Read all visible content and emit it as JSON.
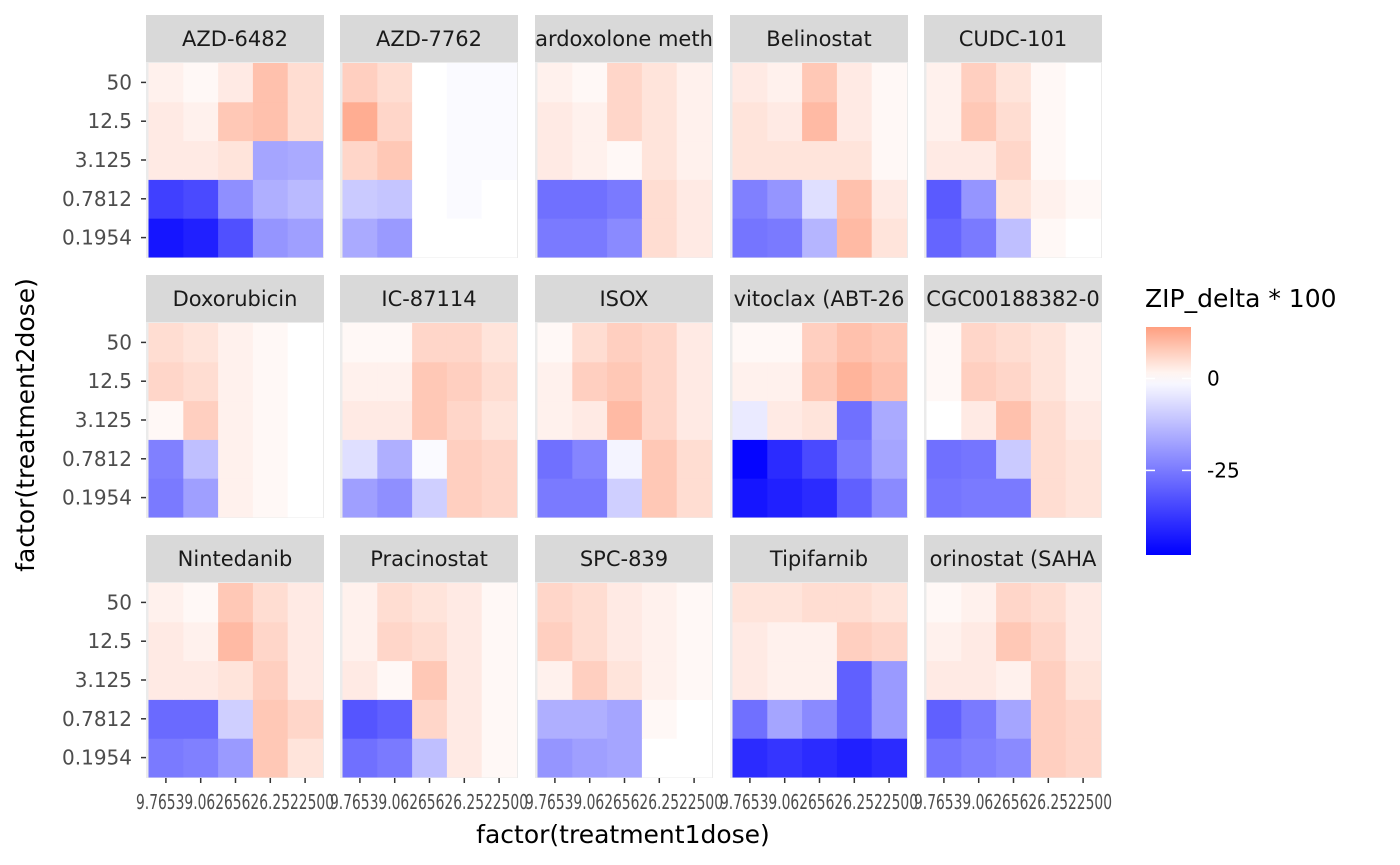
{
  "chart_data": {
    "type": "heatmap",
    "xlabel": "factor(treatment1dose)",
    "ylabel": "factor(treatment2dose)",
    "x_categories": [
      "9.765625",
      "39.0625",
      "156.25",
      "625",
      "2500"
    ],
    "x_tick_display": "9.76539.06265626.2522500",
    "y_categories": [
      "0.1954",
      "0.7812",
      "3.125",
      "12.5",
      "50"
    ],
    "legend": {
      "title": "ZIP_delta * 100",
      "breaks": [
        {
          "value": 0,
          "label": "0"
        },
        {
          "value": -25,
          "label": "-25"
        }
      ],
      "limits": [
        -48,
        14
      ],
      "low_color": "#0000ff",
      "mid_color": "#ffffff",
      "high_color": "#ff9f80"
    },
    "facet_layout": {
      "rows": 3,
      "cols": 5
    },
    "facets": [
      {
        "name": "AZD-6482",
        "z": [
          [
            -44,
            -42,
            -33,
            -20,
            -18
          ],
          [
            -36,
            -34,
            -21,
            -15,
            -13
          ],
          [
            3,
            3,
            4,
            -17,
            -16
          ],
          [
            3,
            2,
            8,
            9,
            5
          ],
          [
            2,
            1,
            3,
            9,
            5
          ]
        ]
      },
      {
        "name": "AZD-7762",
        "z": [
          [
            -16,
            -19,
            0,
            0,
            0
          ],
          [
            -10,
            -11,
            0,
            -1,
            0
          ],
          [
            6,
            8,
            0,
            -1,
            -1
          ],
          [
            12,
            6,
            0,
            -1,
            -1
          ],
          [
            7,
            5,
            0,
            -1,
            -1
          ]
        ]
      },
      {
        "name": "ardoxolone meth",
        "z": [
          [
            -25,
            -25,
            -22,
            5,
            3
          ],
          [
            -27,
            -27,
            -25,
            5,
            3
          ],
          [
            3,
            2,
            1,
            4,
            2
          ],
          [
            3,
            2,
            6,
            4,
            2
          ],
          [
            2,
            1,
            6,
            4,
            2
          ]
        ]
      },
      {
        "name": "Belinostat",
        "z": [
          [
            -26,
            -25,
            -14,
            10,
            4
          ],
          [
            -24,
            -20,
            -6,
            9,
            3
          ],
          [
            4,
            4,
            4,
            4,
            1
          ],
          [
            4,
            3,
            10,
            3,
            1
          ],
          [
            3,
            2,
            8,
            3,
            1
          ]
        ]
      },
      {
        "name": "CUDC-101",
        "z": [
          [
            -29,
            -25,
            -12,
            1,
            0
          ],
          [
            -31,
            -20,
            4,
            2,
            1
          ],
          [
            3,
            3,
            6,
            1,
            0
          ],
          [
            2,
            8,
            5,
            1,
            0
          ],
          [
            2,
            7,
            4,
            1,
            0
          ]
        ]
      },
      {
        "name": "Doxorubicin",
        "z": [
          [
            -25,
            -18,
            2,
            1,
            0
          ],
          [
            -24,
            -12,
            2,
            1,
            0
          ],
          [
            1,
            7,
            2,
            1,
            0
          ],
          [
            6,
            5,
            2,
            1,
            0
          ],
          [
            5,
            4,
            2,
            1,
            0
          ]
        ]
      },
      {
        "name": "IC-87114",
        "z": [
          [
            -18,
            -21,
            -9,
            7,
            6
          ],
          [
            -6,
            -15,
            -1,
            7,
            6
          ],
          [
            3,
            3,
            8,
            6,
            4
          ],
          [
            2,
            2,
            8,
            7,
            5
          ],
          [
            1,
            1,
            6,
            6,
            4
          ]
        ]
      },
      {
        "name": "ISOX",
        "z": [
          [
            -25,
            -25,
            -9,
            8,
            5
          ],
          [
            -27,
            -23,
            -2,
            8,
            5
          ],
          [
            2,
            3,
            10,
            6,
            3
          ],
          [
            2,
            7,
            8,
            6,
            3
          ],
          [
            1,
            5,
            7,
            6,
            3
          ]
        ]
      },
      {
        "name": "vitoclax (ABT-26",
        "z": [
          [
            -44,
            -42,
            -40,
            -30,
            -22
          ],
          [
            -47,
            -40,
            -34,
            -25,
            -17
          ],
          [
            -4,
            3,
            4,
            -27,
            -16
          ],
          [
            2,
            2,
            8,
            11,
            9
          ],
          [
            1,
            1,
            7,
            9,
            8
          ]
        ]
      },
      {
        "name": "CGC00188382-0",
        "z": [
          [
            -26,
            -25,
            -25,
            5,
            4
          ],
          [
            -27,
            -26,
            -10,
            5,
            4
          ],
          [
            0,
            3,
            9,
            5,
            3
          ],
          [
            1,
            7,
            6,
            4,
            2
          ],
          [
            1,
            6,
            5,
            4,
            2
          ]
        ]
      },
      {
        "name": "Nintedanib",
        "z": [
          [
            -25,
            -24,
            -19,
            8,
            4
          ],
          [
            -28,
            -28,
            -9,
            8,
            6
          ],
          [
            3,
            3,
            4,
            7,
            3
          ],
          [
            3,
            2,
            10,
            6,
            3
          ],
          [
            2,
            1,
            8,
            5,
            3
          ]
        ]
      },
      {
        "name": "Pracinostat",
        "z": [
          [
            -27,
            -25,
            -12,
            3,
            1
          ],
          [
            -32,
            -30,
            6,
            3,
            1
          ],
          [
            3,
            1,
            8,
            3,
            1
          ],
          [
            2,
            6,
            5,
            3,
            1
          ],
          [
            2,
            5,
            4,
            3,
            1
          ]
        ]
      },
      {
        "name": "SPC-839",
        "z": [
          [
            -20,
            -18,
            -17,
            0,
            0
          ],
          [
            -15,
            -15,
            -17,
            1,
            0
          ],
          [
            2,
            7,
            4,
            2,
            1
          ],
          [
            7,
            5,
            3,
            2,
            1
          ],
          [
            6,
            5,
            3,
            2,
            1
          ]
        ]
      },
      {
        "name": "Tipifarnib",
        "z": [
          [
            -40,
            -38,
            -40,
            -42,
            -40
          ],
          [
            -27,
            -17,
            -22,
            -30,
            -19
          ],
          [
            3,
            2,
            2,
            -30,
            -19
          ],
          [
            3,
            2,
            2,
            7,
            6
          ],
          [
            4,
            4,
            5,
            5,
            4
          ]
        ]
      },
      {
        "name": "orinostat (SAHA",
        "z": [
          [
            -26,
            -24,
            -22,
            7,
            6
          ],
          [
            -30,
            -25,
            -17,
            7,
            6
          ],
          [
            3,
            3,
            2,
            7,
            4
          ],
          [
            2,
            3,
            8,
            6,
            3
          ],
          [
            1,
            2,
            6,
            5,
            3
          ]
        ]
      }
    ]
  }
}
